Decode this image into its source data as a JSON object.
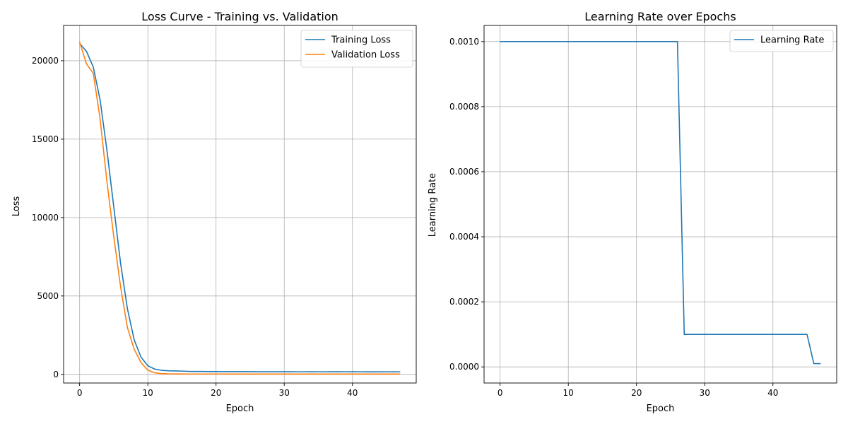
{
  "chart_data": [
    {
      "type": "line",
      "title": "Loss Curve - Training vs. Validation",
      "xlabel": "Epoch",
      "ylabel": "Loss",
      "xlim": [
        -2.35,
        49.35
      ],
      "ylim": [
        -550,
        22250
      ],
      "xticks": [
        0,
        10,
        20,
        30,
        40
      ],
      "yticks": [
        0,
        5000,
        10000,
        15000,
        20000
      ],
      "ytick_labels": [
        "0",
        "5000",
        "10000",
        "15000",
        "20000"
      ],
      "grid": true,
      "legend_position": "top-right",
      "x": [
        0,
        1,
        2,
        3,
        4,
        5,
        6,
        7,
        8,
        9,
        10,
        11,
        12,
        13,
        14,
        15,
        16,
        17,
        18,
        19,
        20,
        21,
        22,
        23,
        24,
        25,
        26,
        27,
        28,
        29,
        30,
        31,
        32,
        33,
        34,
        35,
        36,
        37,
        38,
        39,
        40,
        41,
        42,
        43,
        44,
        45,
        46,
        47
      ],
      "series": [
        {
          "name": "Training Loss",
          "color": "#1f77b4",
          "values": [
            21100,
            20600,
            19600,
            17500,
            14300,
            10700,
            7100,
            4200,
            2200,
            1100,
            550,
            340,
            260,
            230,
            220,
            210,
            190,
            185,
            185,
            180,
            178,
            176,
            175,
            174,
            175,
            172,
            168,
            170,
            170,
            168,
            168,
            166,
            165,
            165,
            168,
            165,
            165,
            167,
            168,
            165,
            168,
            165,
            163,
            163,
            162,
            165,
            163,
            165
          ]
        },
        {
          "name": "Validation Loss",
          "color": "#ff7f0e",
          "values": [
            21200,
            19800,
            19200,
            16300,
            12300,
            8800,
            5600,
            3000,
            1600,
            750,
            270,
            100,
            50,
            35,
            30,
            28,
            25,
            25,
            25,
            24,
            24,
            24,
            23,
            23,
            23,
            23,
            22,
            22,
            22,
            22,
            22,
            22,
            22,
            22,
            22,
            22,
            22,
            22,
            22,
            22,
            22,
            22,
            22,
            22,
            22,
            22,
            22,
            22
          ]
        }
      ]
    },
    {
      "type": "line",
      "title": "Learning Rate over Epochs",
      "xlabel": "Epoch",
      "ylabel": "Learning Rate",
      "xlim": [
        -2.35,
        49.35
      ],
      "ylim": [
        -4.95e-05,
        0.0010495
      ],
      "xticks": [
        0,
        10,
        20,
        30,
        40
      ],
      "yticks": [
        0,
        0.0002,
        0.0004,
        0.0006,
        0.0008,
        0.001
      ],
      "ytick_labels": [
        "0.0000",
        "0.0002",
        "0.0004",
        "0.0006",
        "0.0008",
        "0.0010"
      ],
      "grid": true,
      "legend_position": "top-right",
      "x": [
        0,
        1,
        2,
        3,
        4,
        5,
        6,
        7,
        8,
        9,
        10,
        11,
        12,
        13,
        14,
        15,
        16,
        17,
        18,
        19,
        20,
        21,
        22,
        23,
        24,
        25,
        26,
        27,
        28,
        29,
        30,
        31,
        32,
        33,
        34,
        35,
        36,
        37,
        38,
        39,
        40,
        41,
        42,
        43,
        44,
        45,
        46,
        47
      ],
      "series": [
        {
          "name": "Learning Rate",
          "color": "#1f77b4",
          "values": [
            0.001,
            0.001,
            0.001,
            0.001,
            0.001,
            0.001,
            0.001,
            0.001,
            0.001,
            0.001,
            0.001,
            0.001,
            0.001,
            0.001,
            0.001,
            0.001,
            0.001,
            0.001,
            0.001,
            0.001,
            0.001,
            0.001,
            0.001,
            0.001,
            0.001,
            0.001,
            0.001,
            0.0001,
            0.0001,
            0.0001,
            0.0001,
            0.0001,
            0.0001,
            0.0001,
            0.0001,
            0.0001,
            0.0001,
            0.0001,
            0.0001,
            0.0001,
            0.0001,
            0.0001,
            0.0001,
            0.0001,
            0.0001,
            0.0001,
            1e-05,
            1e-05
          ]
        }
      ]
    }
  ]
}
